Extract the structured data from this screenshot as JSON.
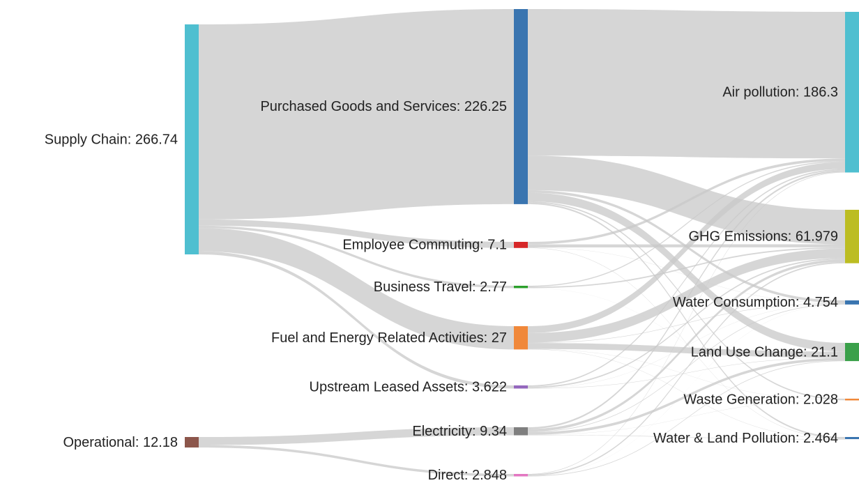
{
  "chart_data": {
    "type": "sankey",
    "nodes": [
      {
        "label": "Supply Chain: 266.74",
        "value": 266.74,
        "color": "#4fbfd0"
      },
      {
        "label": "Operational: 12.18",
        "value": 12.18,
        "color": "#8c564b"
      },
      {
        "label": "Purchased Goods and Services: 226.25",
        "value": 226.25,
        "color": "#3a75b0"
      },
      {
        "label": "Employee Commuting: 7.1",
        "value": 7.1,
        "color": "#d62728"
      },
      {
        "label": "Business Travel: 2.77",
        "value": 2.77,
        "color": "#2ca02c"
      },
      {
        "label": "Fuel and Energy Related Activities: 27",
        "value": 27,
        "color": "#f0883a"
      },
      {
        "label": "Upstream Leased Assets: 3.622",
        "value": 3.622,
        "color": "#9467bd"
      },
      {
        "label": "Electricity: 9.34",
        "value": 9.34,
        "color": "#7f7f7f"
      },
      {
        "label": "Direct: 2.848",
        "value": 2.848,
        "color": "#e377c2"
      },
      {
        "label": "Air pollution: 186.3",
        "value": 186.3,
        "color": "#4fbfd0"
      },
      {
        "label": "GHG Emissions: 61.979",
        "value": 61.979,
        "color": "#bcbd22"
      },
      {
        "label": "Water Consumption: 4.754",
        "value": 4.754,
        "color": "#3a75b0"
      },
      {
        "label": "Land Use Change: 21.1",
        "value": 21.1,
        "color": "#3aa04a"
      },
      {
        "label": "Waste Generation: 2.028",
        "value": 2.028,
        "color": "#f0883a"
      },
      {
        "label": "Water & Land Pollution: 2.464",
        "value": 2.464,
        "color": "#3a75b0"
      }
    ],
    "links": [
      {
        "source": 0,
        "target": 2,
        "value": 226.25
      },
      {
        "source": 0,
        "target": 3,
        "value": 7.1
      },
      {
        "source": 0,
        "target": 4,
        "value": 2.77
      },
      {
        "source": 0,
        "target": 5,
        "value": 27
      },
      {
        "source": 0,
        "target": 6,
        "value": 3.622
      },
      {
        "source": 1,
        "target": 7,
        "value": 9.34
      },
      {
        "source": 1,
        "target": 8,
        "value": 2.848
      },
      {
        "source": 2,
        "target": 9,
        "value": 170
      },
      {
        "source": 2,
        "target": 10,
        "value": 40
      },
      {
        "source": 2,
        "target": 11,
        "value": 3
      },
      {
        "source": 2,
        "target": 12,
        "value": 10
      },
      {
        "source": 2,
        "target": 13,
        "value": 1.5
      },
      {
        "source": 2,
        "target": 14,
        "value": 1.75
      },
      {
        "source": 3,
        "target": 9,
        "value": 3
      },
      {
        "source": 3,
        "target": 10,
        "value": 3.5
      },
      {
        "source": 3,
        "target": 11,
        "value": 0.2
      },
      {
        "source": 3,
        "target": 14,
        "value": 0.4
      },
      {
        "source": 4,
        "target": 9,
        "value": 1.2
      },
      {
        "source": 4,
        "target": 10,
        "value": 1.5
      },
      {
        "source": 4,
        "target": 13,
        "value": 0.07
      },
      {
        "source": 5,
        "target": 9,
        "value": 8
      },
      {
        "source": 5,
        "target": 10,
        "value": 11
      },
      {
        "source": 5,
        "target": 11,
        "value": 0.5
      },
      {
        "source": 5,
        "target": 12,
        "value": 7
      },
      {
        "source": 5,
        "target": 13,
        "value": 0.2
      },
      {
        "source": 5,
        "target": 14,
        "value": 0.3
      },
      {
        "source": 6,
        "target": 9,
        "value": 1.5
      },
      {
        "source": 6,
        "target": 10,
        "value": 1.5
      },
      {
        "source": 6,
        "target": 11,
        "value": 0.2
      },
      {
        "source": 6,
        "target": 12,
        "value": 0.4
      },
      {
        "source": 7,
        "target": 9,
        "value": 2
      },
      {
        "source": 7,
        "target": 10,
        "value": 3
      },
      {
        "source": 7,
        "target": 11,
        "value": 0.7
      },
      {
        "source": 7,
        "target": 12,
        "value": 3
      },
      {
        "source": 7,
        "target": 13,
        "value": 0.2
      },
      {
        "source": 7,
        "target": 14,
        "value": 0.44
      },
      {
        "source": 8,
        "target": 9,
        "value": 0.6
      },
      {
        "source": 8,
        "target": 10,
        "value": 1.5
      },
      {
        "source": 8,
        "target": 11,
        "value": 0.1
      },
      {
        "source": 8,
        "target": 12,
        "value": 0.7
      }
    ]
  }
}
